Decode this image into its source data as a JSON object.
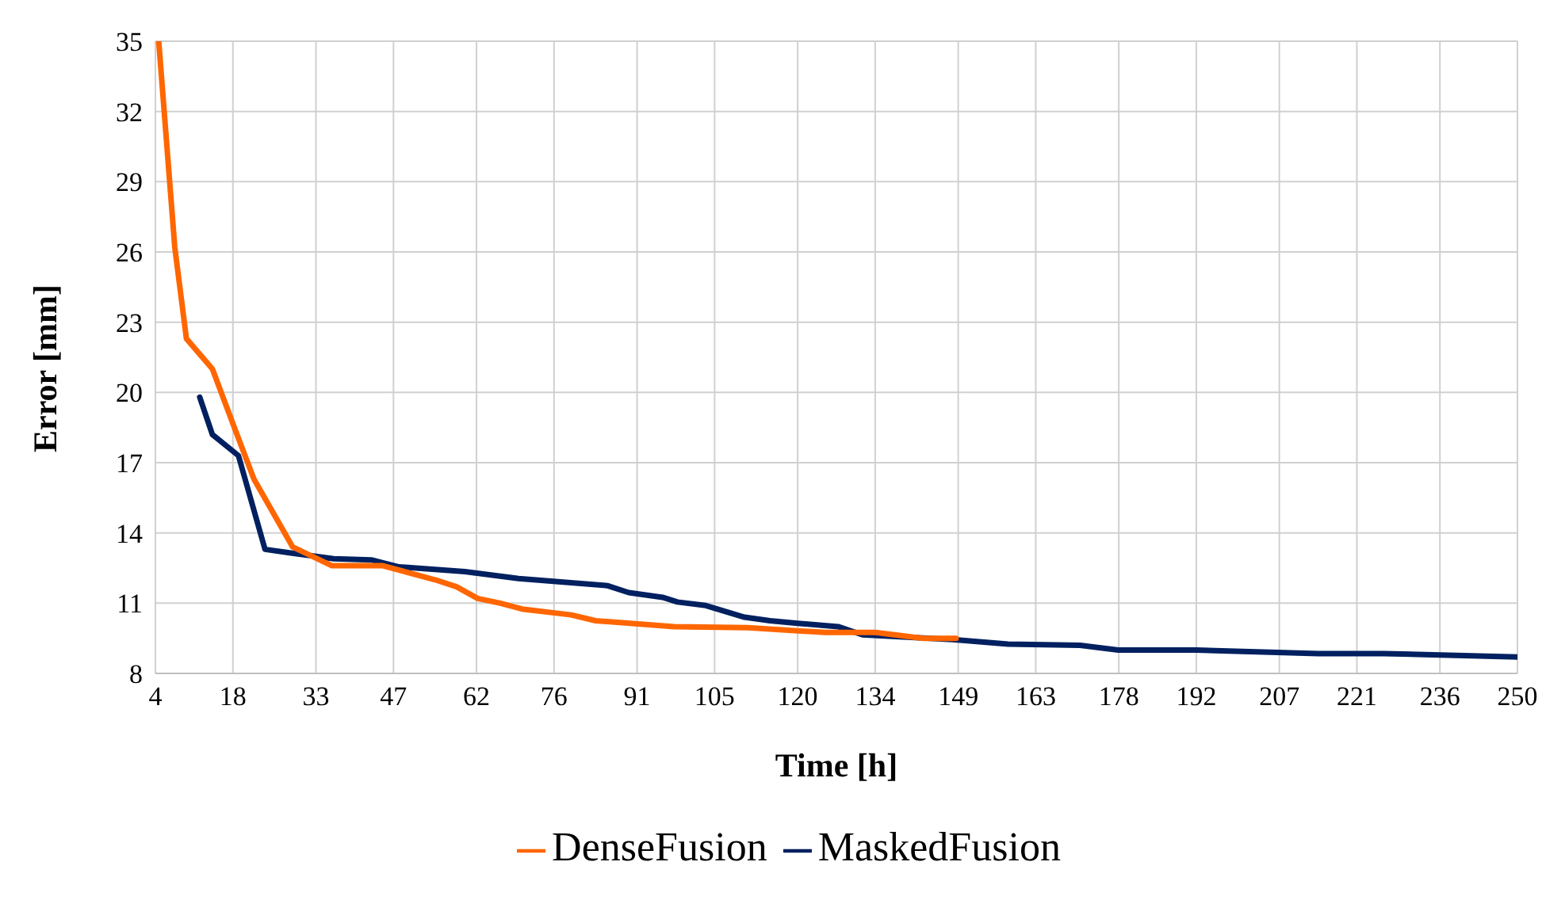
{
  "chart_data": {
    "type": "line",
    "xlabel": "Time [h]",
    "ylabel": "Error [mm]",
    "xlim": [
      4,
      250
    ],
    "xticks": [
      4,
      18,
      33,
      47,
      62,
      76,
      91,
      105,
      120,
      134,
      149,
      163,
      178,
      192,
      207,
      221,
      236,
      250
    ],
    "ylim": [
      8,
      35
    ],
    "yticks": [
      8,
      11,
      14,
      17,
      20,
      23,
      26,
      29,
      32,
      35
    ],
    "grid": true,
    "legend": "bottom",
    "marker": "none",
    "line_style": "solid",
    "series": [
      {
        "name": "MaskedFusion",
        "color": "#002060",
        "x": [
          12,
          14.3,
          19,
          23.8,
          28.2,
          36.2,
          43,
          48,
          59.9,
          69.6,
          85.6,
          89.5,
          95.6,
          98.3,
          103.4,
          110.4,
          115,
          119.6,
          127.3,
          131.7,
          148,
          158,
          171,
          177.9,
          184,
          192,
          214,
          225.8,
          250
        ],
        "values": [
          19.8,
          18.2,
          17.3,
          13.3,
          13.15,
          12.9,
          12.85,
          12.55,
          12.35,
          12.05,
          11.75,
          11.45,
          11.25,
          11.05,
          10.9,
          10.4,
          10.25,
          10.15,
          10,
          9.65,
          9.45,
          9.25,
          9.2,
          9,
          9,
          9,
          8.85,
          8.85,
          8.7
        ]
      },
      {
        "name": "DenseFusion",
        "color": "#ff6600",
        "x": [
          4.6,
          7.5,
          9.6,
          14.3,
          18.5,
          21.8,
          28.8,
          35.9,
          45.1,
          54.5,
          58.4,
          62.2,
          66.3,
          70.2,
          79.1,
          83.5,
          97.7,
          111,
          125,
          134,
          142.7,
          148.6
        ],
        "values": [
          35,
          26.2,
          22.3,
          21,
          18.35,
          16.3,
          13.4,
          12.6,
          12.6,
          12,
          11.7,
          11.2,
          11,
          10.75,
          10.5,
          10.25,
          10,
          9.95,
          9.75,
          9.75,
          9.5,
          9.5
        ]
      }
    ]
  }
}
